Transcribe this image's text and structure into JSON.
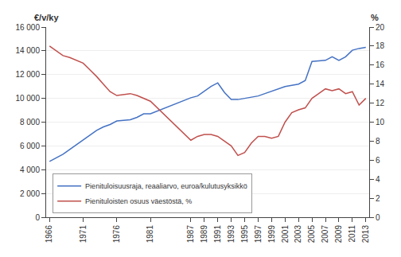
{
  "chart_data": {
    "type": "line",
    "ylabel": "€/v/ky",
    "y2label": "%",
    "x": [
      1966,
      1967,
      1968,
      1969,
      1970,
      1971,
      1972,
      1973,
      1974,
      1975,
      1976,
      1977,
      1978,
      1979,
      1980,
      1981,
      1987,
      1988,
      1989,
      1990,
      1991,
      1992,
      1993,
      1994,
      1995,
      1996,
      1997,
      1998,
      1999,
      2000,
      2001,
      2002,
      2003,
      2004,
      2005,
      2006,
      2007,
      2008,
      2009,
      2010,
      2011,
      2012,
      2013
    ],
    "series": [
      {
        "name": "Pienituloisuusraja, reaaliarvo, euroa/kulutusyksikkö",
        "color": "#4472C4",
        "values": [
          4700,
          5000,
          5300,
          5700,
          6100,
          6500,
          6900,
          7300,
          7600,
          7800,
          8100,
          8150,
          8200,
          8400,
          8700,
          8700,
          10050,
          10200,
          10600,
          11000,
          11300,
          10500,
          9900,
          9900,
          10000,
          10100,
          10200,
          10400,
          10600,
          10800,
          11000,
          11100,
          11200,
          11500,
          13100,
          13150,
          13200,
          13500,
          13200,
          13500,
          14050,
          14200,
          14300
        ]
      },
      {
        "name": "Pienituloisten osuus väestöstä, %",
        "color": "#C0504D",
        "axis": "y2",
        "values": [
          18.0,
          17.5,
          17.0,
          16.8,
          16.5,
          16.2,
          15.5,
          14.8,
          14.0,
          13.2,
          12.8,
          12.9,
          13.0,
          12.8,
          12.5,
          12.2,
          8.1,
          8.5,
          8.7,
          8.7,
          8.5,
          8.0,
          7.5,
          6.5,
          6.8,
          7.8,
          8.5,
          8.5,
          8.3,
          8.5,
          10.0,
          11.0,
          11.3,
          11.5,
          12.5,
          13.0,
          13.5,
          13.3,
          13.5,
          13.0,
          13.2,
          11.8,
          12.5
        ]
      }
    ],
    "xlim": [
      1965.5,
      2013.5
    ],
    "xticks": [
      1966,
      1971,
      1976,
      1981,
      1987,
      1989,
      1991,
      1993,
      1995,
      1997,
      1999,
      2001,
      2003,
      2005,
      2007,
      2009,
      2011,
      2013
    ],
    "ylim": [
      0,
      16000
    ],
    "yticks": [
      0,
      {
        "value": 2000,
        "label": "2 000"
      },
      {
        "value": 4000,
        "label": "4 000"
      },
      {
        "value": 6000,
        "label": "6 000"
      },
      {
        "value": 8000,
        "label": "8 000"
      },
      {
        "value": 10000,
        "label": "10 000"
      },
      {
        "value": 12000,
        "label": "12 000"
      },
      {
        "value": 14000,
        "label": "14 000"
      },
      {
        "value": 16000,
        "label": "16 000"
      }
    ],
    "y2lim": [
      0,
      20
    ],
    "y2ticks": [
      0,
      2,
      4,
      6,
      8,
      10,
      12,
      14,
      16,
      18,
      20
    ],
    "grid": true,
    "legend": "lower left"
  }
}
